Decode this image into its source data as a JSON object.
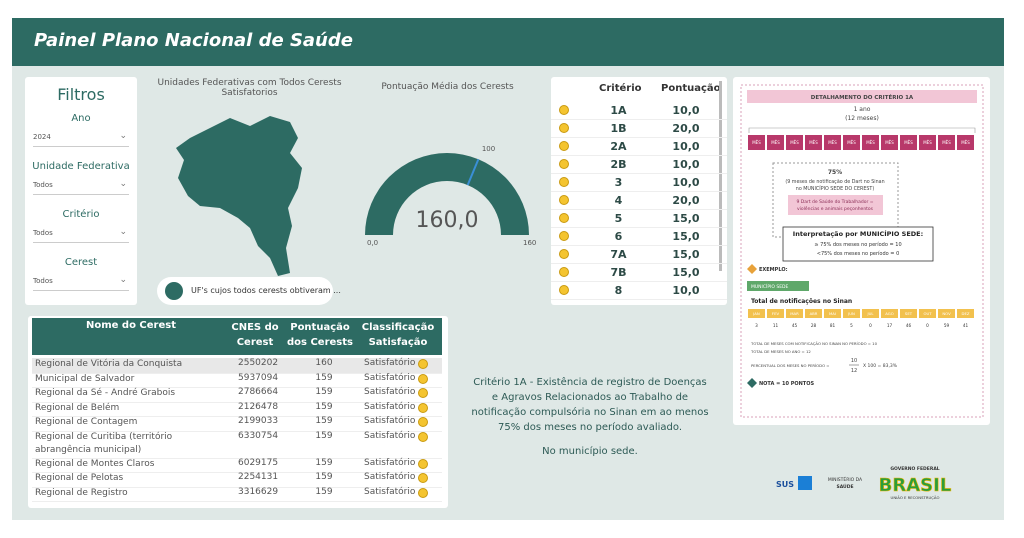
{
  "header": {
    "title": "Painel Plano Nacional de Saúde"
  },
  "filters": {
    "title": "Filtros",
    "items": [
      {
        "label": "Ano",
        "value": "2024"
      },
      {
        "label": "Unidade Federativa",
        "value": "Todos"
      },
      {
        "label": "Critério",
        "value": "Todos"
      },
      {
        "label": "Cerest",
        "value": "Todos"
      }
    ]
  },
  "map": {
    "title": "Unidades Federativas com Todos Cerests Satisfatorios",
    "legend": "UF's cujos todos cerests obtiveram ..."
  },
  "gauge": {
    "title": "Pontuação Média dos Cerests",
    "value": 160,
    "value_label": "160,0",
    "min": 0,
    "min_label": "0,0",
    "max": 160,
    "target": 100
  },
  "criteria_table": {
    "columns": [
      "Critério",
      "Pontuação"
    ],
    "rows": [
      [
        "1A",
        "10,0"
      ],
      [
        "1B",
        "20,0"
      ],
      [
        "2A",
        "10,0"
      ],
      [
        "2B",
        "10,0"
      ],
      [
        "3",
        "10,0"
      ],
      [
        "4",
        "20,0"
      ],
      [
        "5",
        "15,0"
      ],
      [
        "6",
        "15,0"
      ],
      [
        "7A",
        "15,0"
      ],
      [
        "7B",
        "15,0"
      ],
      [
        "8",
        "10,0"
      ]
    ]
  },
  "cerest_table": {
    "columns": [
      "Nome do Cerest",
      "CNES do Cerest",
      "Pontuação dos Cerests",
      "Classificação Satisfação"
    ],
    "rows": [
      [
        "Regional de Vitória da Conquista",
        "2550202",
        "160",
        "Satisfatório"
      ],
      [
        "Municipal de Salvador",
        "5937094",
        "159",
        "Satisfatório"
      ],
      [
        "Regional da Sé - André Grabois",
        "2786664",
        "159",
        "Satisfatório"
      ],
      [
        "Regional de Belém",
        "2126478",
        "159",
        "Satisfatório"
      ],
      [
        "Regional de Contagem",
        "2199033",
        "159",
        "Satisfatório"
      ],
      [
        "Regional de Curitiba (território abrangência municipal)",
        "6330754",
        "159",
        "Satisfatório"
      ],
      [
        "Regional de Montes Claros",
        "6029175",
        "159",
        "Satisfatório"
      ],
      [
        "Regional de Pelotas",
        "2254131",
        "159",
        "Satisfatório"
      ],
      [
        "Regional de Registro",
        "3316629",
        "159",
        "Satisfatório"
      ]
    ]
  },
  "description": {
    "text": "Critério 1A - Existência de registro de Doenças e Agravos Relacionados ao Trabalho de notificação compulsória no Sinan em ao menos 75% dos meses no período avaliado.",
    "note": "No município sede."
  },
  "detail": {
    "title": "DETALHAMENTO DO CRITÉRIO 1A",
    "period": "1 ano",
    "period_sub": "(12 meses)",
    "months": [
      "MÊS",
      "MÊS",
      "MÊS",
      "MÊS",
      "MÊS",
      "MÊS",
      "MÊS",
      "MÊS",
      "MÊS",
      "MÊS",
      "MÊS",
      "MÊS"
    ],
    "pct": "75%",
    "pct_lines": [
      "(9 meses de notificação de Dart no Sinan",
      "no MUNICÍPIO SEDE DO CEREST)"
    ],
    "dart_lines": [
      "9 Dart de Saúde do Trabalhador =",
      "violências e animais peçonhentos"
    ],
    "interp_title": "Interpretação por MUNICÍPIO SEDE:",
    "interp_lines": [
      "≥ 75% dos meses no período = 10",
      "<75% dos meses no período = 0"
    ],
    "example": "EXEMPLO:",
    "municipio": "MUNICÍPIO SEDE",
    "total_title": "Total de notificações no Sinan",
    "month_names": [
      "JAN",
      "FEV",
      "MAR",
      "ABR",
      "MAI",
      "JUN",
      "JUL",
      "AGO",
      "SET",
      "OUT",
      "NOV",
      "DEZ"
    ],
    "counts": [
      "3",
      "11",
      "45",
      "28",
      "81",
      "5",
      "0",
      "17",
      "46",
      "0",
      "59",
      "41"
    ],
    "totals": [
      "TOTAL DE MESES COM NOTIFICAÇÃO NO SINAN NO PERÍODO = 10",
      "TOTAL DE MESES NO ANO = 12"
    ],
    "percent_label": "PERCENTUAL DOS MESES NO PERÍODO =",
    "numerator": "10",
    "denominator": "12",
    "percent_result": "X 100 = 83,3%",
    "grade": "NOTA = 10 PONTOS"
  },
  "footer": {
    "sus": "SUS",
    "ministry": [
      "MINISTÉRIO DA",
      "SAÚDE"
    ],
    "gov": "GOVERNO FEDERAL",
    "brasil": "BRASIL",
    "slogan": "UNIÃO E RECONSTRUÇÃO"
  }
}
